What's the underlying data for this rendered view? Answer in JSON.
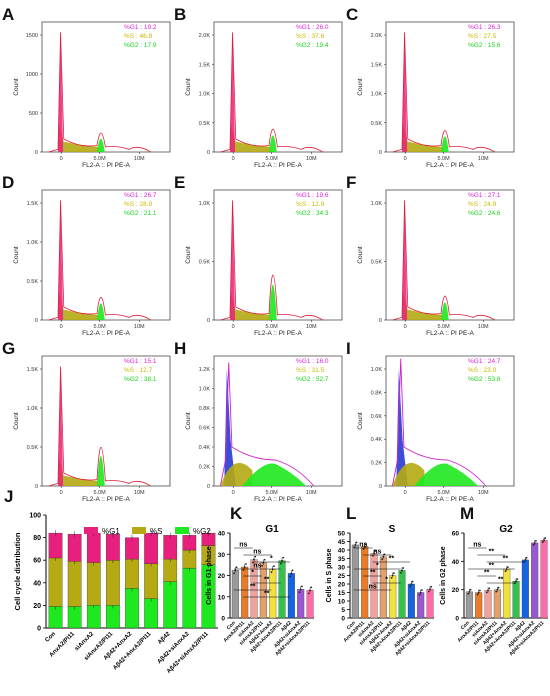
{
  "colors": {
    "g1": "#e8207d",
    "s": "#b5aa13",
    "g2": "#1ee81e",
    "g1_text": "#d81fd8",
    "s_text": "#c9b800",
    "g2_text": "#18d418",
    "bar_con": "#9a9a9a",
    "bar_anx_pi": "#e87c2a",
    "bar_si": "#f1a39b",
    "bar_si_pi": "#e0a070",
    "bar_ab": "#f0e040",
    "bar_ab_anx": "#34c24a",
    "bar_ab_anx_pi": "#1565e0",
    "bar_ab2": "#9a58d0",
    "bar_ab2_si": "#ff6aa8",
    "bar_ab2_si_pi": "#f07090"
  },
  "hist": {
    "xlabel": "FL2-A :: PI PE-A",
    "ylabel": "Count",
    "ticks_x": [
      "0",
      "5.0M",
      "10M"
    ],
    "ticks_x_short": [
      "0",
      "5.0M"
    ],
    "ticks_y_1": [
      "0",
      "500",
      "1000",
      "1500"
    ],
    "ticks_y_2": [
      "0",
      "0.5K",
      "1.0K",
      "1.5K",
      "2.0K"
    ],
    "ticks_y_3": [
      "0",
      "0.5K",
      "1.0K",
      "1.5K"
    ],
    "ticks_y_4": [
      "0",
      "0.5K",
      "1.0K"
    ],
    "ticks_y_5": [
      "0",
      "0.5K",
      "1.0K",
      "1.5K"
    ],
    "ticks_y_9": [
      "0",
      "0.2K",
      "0.4K",
      "0.6K",
      "0.8K",
      "1.0K",
      "1.2K"
    ],
    "ticks_y_10": [
      "0",
      "0.2K",
      "0.4K",
      "0.6K",
      "0.8K",
      "1.0K"
    ],
    "panels": [
      {
        "letter": "A",
        "g1": "%G1 : 19.2",
        "s": "%S : 46.9",
        "g2": "%G2 : 17.9"
      },
      {
        "letter": "B",
        "g1": "%G1 : 26.0",
        "s": "%S : 37.6",
        "g2": "%G2 : 19.4"
      },
      {
        "letter": "C",
        "g1": "%G1 : 26.3",
        "s": "%S : 27.5",
        "g2": "%G2 : 15.6"
      },
      {
        "letter": "D",
        "g1": "%G1 : 26.7",
        "s": "%S : 28.9",
        "g2": "%G2 : 21.1"
      },
      {
        "letter": "E",
        "g1": "%G1 : 19.6",
        "s": "%S : 12.9",
        "g2": "%G2 : 34.3"
      },
      {
        "letter": "F",
        "g1": "%G1 : 27.1",
        "s": "%S : 24.9",
        "g2": "%G2 : 24.6"
      },
      {
        "letter": "G",
        "g1": "%G1 : 15.1",
        "s": "%S : 12.7",
        "g2": "%G2 : 38.1"
      },
      {
        "letter": "H",
        "g1": "%G1 : 16.0",
        "s": "%S : 31.5",
        "g2": "%G2 : 52.7"
      },
      {
        "letter": "I",
        "g1": "%G1 : 24.7",
        "s": "%S : 23.0",
        "g2": "%G2 : 53.8"
      }
    ]
  },
  "chart_data": [
    {
      "type": "bar",
      "panel": "J",
      "stacked": true,
      "ylabel": "Cell cycle distribution",
      "ylim": [
        0,
        100
      ],
      "yticks": [
        "0",
        "20",
        "40",
        "60",
        "80",
        "100"
      ],
      "legend": [
        "%G1",
        "%S",
        "%G2"
      ],
      "categories": [
        "Con",
        "AnxA2/PI11",
        "siAnxA2",
        "siAnxA2/PI11",
        "Aβ42+AnxA2",
        "Aβ42+AnxA2/PI11",
        "Aβ42",
        "Aβ42+siAnxA2",
        "Aβ42+siAnxA2/PI11"
      ],
      "series": [
        {
          "name": "%G2",
          "values": [
            19,
            19,
            20,
            20,
            35,
            26,
            41,
            53,
            56
          ]
        },
        {
          "name": "%S",
          "values": [
            43,
            40,
            38,
            40,
            26,
            31,
            20,
            16,
            17
          ]
        },
        {
          "name": "%G1",
          "values": [
            22,
            24,
            26,
            23,
            19,
            27,
            21,
            13,
            11
          ]
        }
      ]
    },
    {
      "type": "bar",
      "panel": "K",
      "title": "G1",
      "ylabel": "Cells in G1 phase",
      "ylim": [
        0,
        40
      ],
      "yticks": [
        "0",
        "10",
        "20",
        "30",
        "40"
      ],
      "categories": [
        "Con",
        "AnxA2/PI11",
        "siAnxA2",
        "siAnxA2/PI11",
        "Aβ42+AnxA2",
        "Aβ42+AnxA2/PI11",
        "Aβ42",
        "Aβ42+siAnxA2",
        "Aβ42+siAnxA2/PI11"
      ],
      "values": [
        22.5,
        24,
        27.5,
        26,
        23,
        27,
        21,
        13.5,
        13
      ],
      "annotations": [
        "ns",
        "ns",
        "*",
        "ns",
        "*",
        "**",
        "**",
        "**"
      ]
    },
    {
      "type": "bar",
      "panel": "L",
      "title": "S",
      "ylabel": "Cells in S phase",
      "ylim": [
        0,
        50
      ],
      "yticks": [
        "0",
        "5",
        "10",
        "15",
        "20",
        "25",
        "30",
        "35",
        "40",
        "45",
        "50"
      ],
      "categories": [
        "Con",
        "AnxA2/PI11",
        "siAnxA2",
        "siAnxA2/PI11",
        "Aβ42+AnxA2",
        "Aβ42+AnxA2/PI11",
        "Aβ42",
        "Aβ42+siAnxA2",
        "Aβ42+siAnxA2/PI11"
      ],
      "values": [
        43,
        42,
        38,
        36,
        25,
        28,
        20,
        15,
        17
      ],
      "annotations": [
        "ns",
        "ns",
        "**",
        "*",
        "**",
        "*",
        "ns"
      ]
    },
    {
      "type": "bar",
      "panel": "M",
      "title": "G2",
      "ylabel": "Cells in G2 phase",
      "ylim": [
        0,
        60
      ],
      "yticks": [
        "0",
        "20",
        "40",
        "60"
      ],
      "categories": [
        "Con",
        "AnxA2/PI11",
        "siAnxA2",
        "siAnxA2/PI11",
        "Aβ42+AnxA2",
        "Aβ42+AnxA2/PI11",
        "Aβ42",
        "Aβ42+siAnxA2",
        "Aβ42+siAnxA2/PI11"
      ],
      "values": [
        18.5,
        18,
        19.5,
        20,
        34.5,
        26,
        41,
        53,
        55
      ],
      "annotations": [
        "ns",
        "**",
        "**",
        "**",
        "**",
        "**"
      ]
    }
  ]
}
